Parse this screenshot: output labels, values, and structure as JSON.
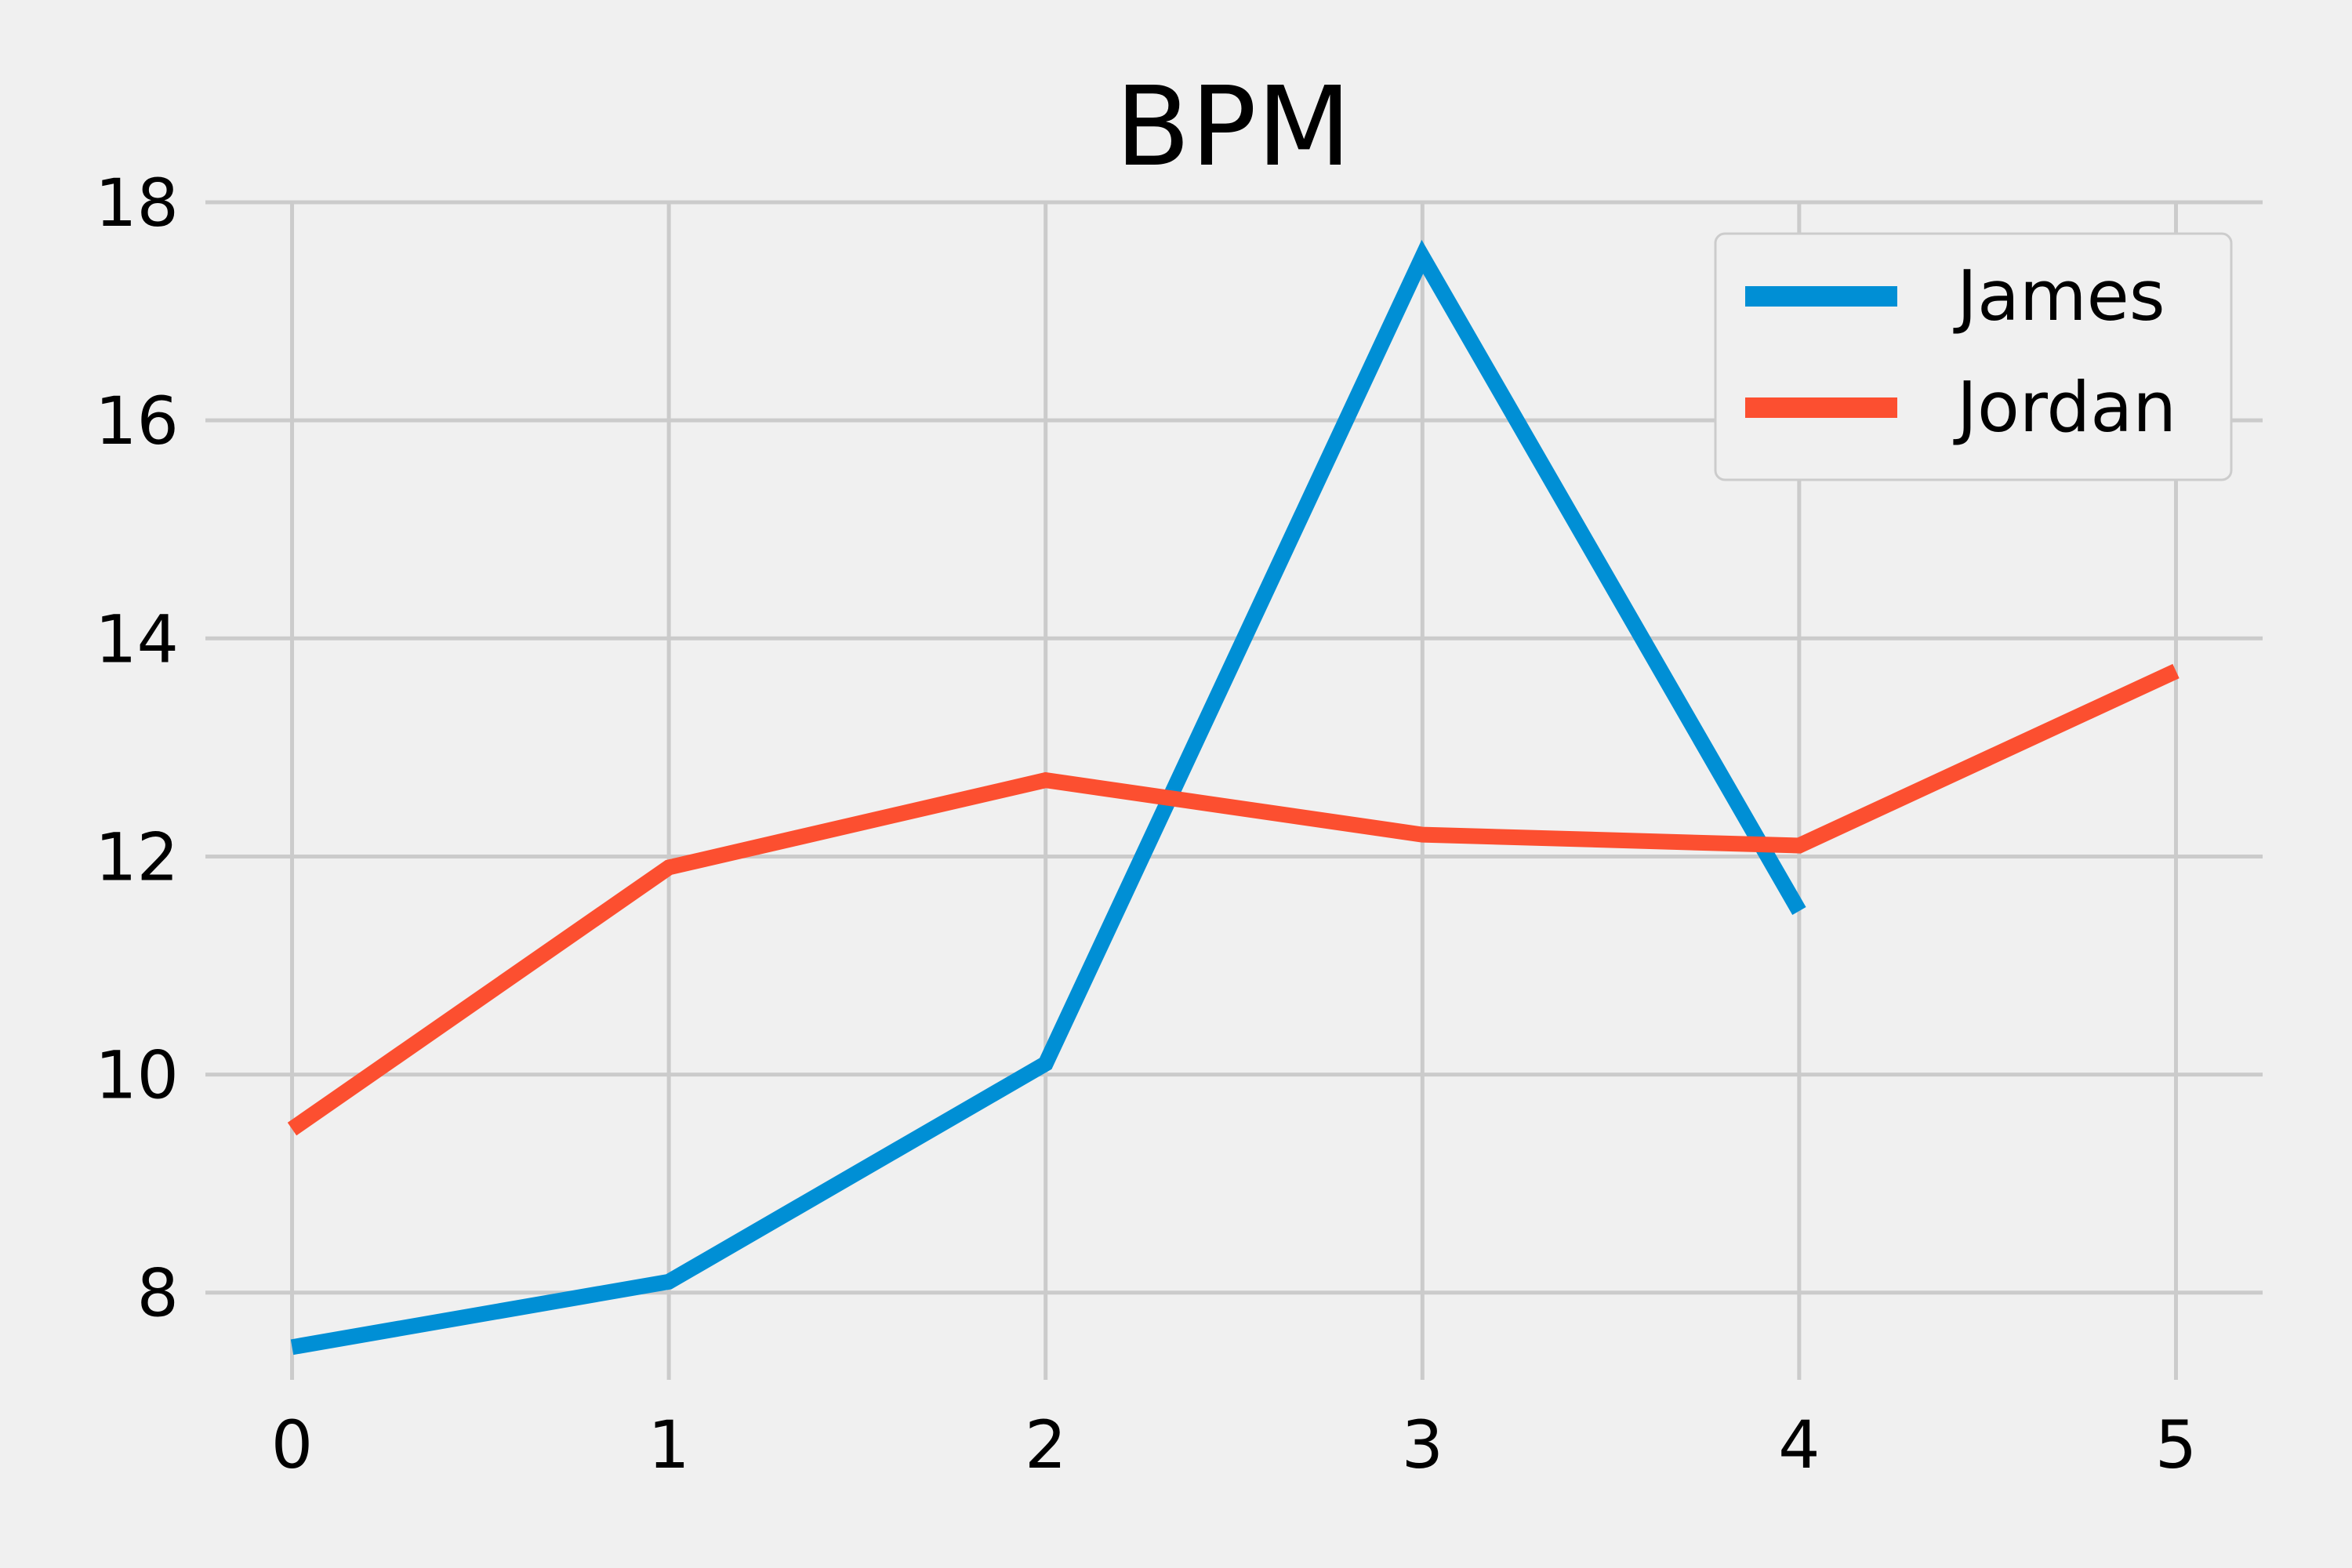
{
  "chart_data": {
    "type": "line",
    "title": "BPM",
    "xlabel": "",
    "ylabel": "",
    "x": [
      0,
      1,
      2,
      3,
      4,
      5
    ],
    "xticks": [
      "0",
      "1",
      "2",
      "3",
      "4",
      "5"
    ],
    "yticks": [
      "8",
      "10",
      "12",
      "14",
      "16",
      "18"
    ],
    "xlim": [
      -0.23,
      5.23
    ],
    "ylim": [
      7.2,
      18
    ],
    "grid": true,
    "legend_position": "top-right",
    "series": [
      {
        "name": "James",
        "color": "#008fd5",
        "x": [
          0,
          1,
          2,
          3,
          4
        ],
        "values": [
          7.5,
          8.1,
          10.1,
          17.5,
          11.5
        ]
      },
      {
        "name": "Jordan",
        "color": "#fc4f30",
        "x": [
          0,
          1,
          2,
          3,
          4,
          5
        ],
        "values": [
          9.5,
          11.9,
          12.7,
          12.2,
          12.1,
          13.7
        ]
      }
    ]
  }
}
